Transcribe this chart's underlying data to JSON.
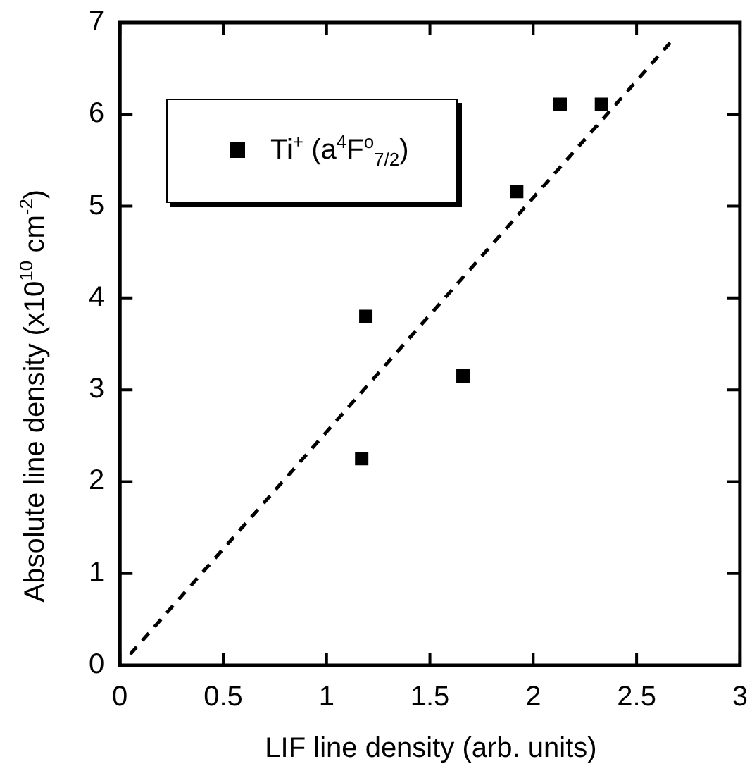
{
  "chart_data": {
    "type": "scatter",
    "xlabel": "LIF line density (arb. units)",
    "ylabel": "Absolute line density (x10$^{10}$ cm$^{-2}$)",
    "xlim": [
      0,
      3
    ],
    "xticks": [
      0,
      0.5,
      1,
      1.5,
      2,
      2.5,
      3
    ],
    "ylim": [
      0,
      7
    ],
    "yticks": [
      0,
      1,
      2,
      3,
      4,
      5,
      6,
      7
    ],
    "grid": false,
    "legend": "top left",
    "series": [
      {
        "name": "Ti$^{+}$ (a$^{4}$F$^{o}$$_{7/2}$)",
        "marker": "square",
        "color": "#000000",
        "x": [
          1.17,
          1.19,
          1.66,
          1.92,
          2.13,
          2.33
        ],
        "values": [
          2.25,
          3.8,
          3.15,
          5.16,
          6.11,
          6.11
        ]
      },
      {
        "type": "line",
        "marker": "none",
        "color": "#000000",
        "line_style": "dashed",
        "x": [
          0.05,
          2.67
        ],
        "values": [
          0.12,
          6.8
        ]
      }
    ]
  }
}
